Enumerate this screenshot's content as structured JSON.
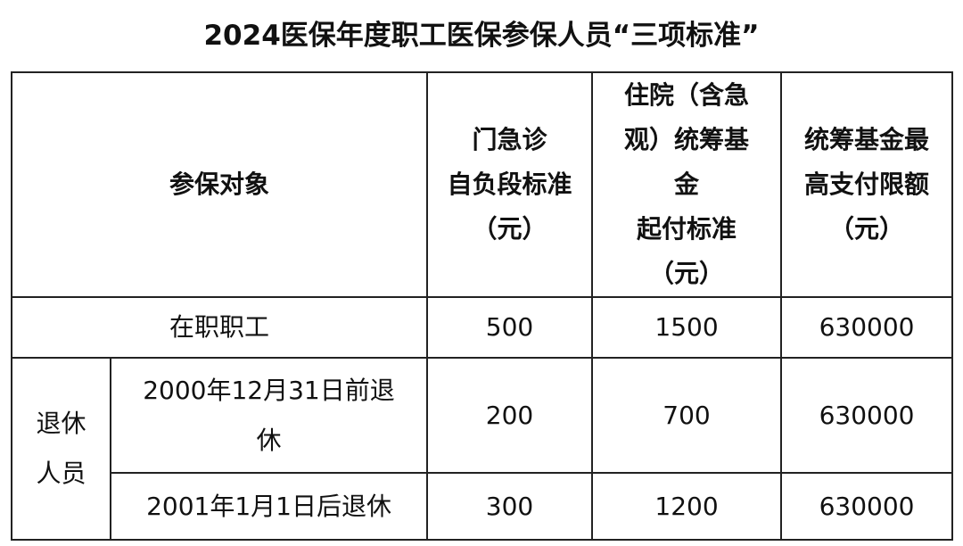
{
  "title": "2024医保年度职工医保参保人员“三项标准”",
  "table": {
    "headers": [
      "参保对象",
      "门急诊\n自负段标准\n（元）",
      "住院（含急\n观）统筹基\n金\n起付标准\n（元）",
      "统筹基金最\n高支付限额\n（元）"
    ],
    "rows": [
      {
        "group": "",
        "label": "在职职工",
        "outpatient": "500",
        "inpatient": "1500",
        "max_limit": "630000"
      },
      {
        "group": "退休\n人员",
        "label": "2000年12月31日前退\n休",
        "outpatient": "200",
        "inpatient": "700",
        "max_limit": "630000"
      },
      {
        "group": "退休\n人员",
        "label": "2001年1月1日后退休",
        "outpatient": "300",
        "inpatient": "1200",
        "max_limit": "630000"
      }
    ]
  }
}
